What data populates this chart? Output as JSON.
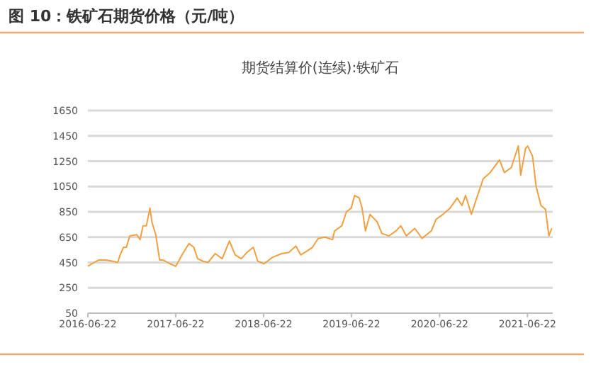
{
  "chart_data": {
    "type": "line",
    "title": "图 10：铁矿石期货价格（元/吨）",
    "subtitle": "期货结算价(连续):铁矿石",
    "x": [
      "2016-06-22",
      "2016-07-08",
      "2016-08-06",
      "2016-09-05",
      "2016-10-05",
      "2016-10-24",
      "2016-11-03",
      "2016-11-17",
      "2016-11-29",
      "2016-12-13",
      "2017-01-11",
      "2017-01-25",
      "2017-02-06",
      "2017-02-20",
      "2017-03-07",
      "2017-03-15",
      "2017-03-31",
      "2017-04-16",
      "2017-04-30",
      "2017-05-19",
      "2017-06-22",
      "2017-07-18",
      "2017-08-16",
      "2017-09-05",
      "2017-09-21",
      "2017-10-14",
      "2017-11-03",
      "2017-12-03",
      "2018-01-01",
      "2018-01-31",
      "2018-02-24",
      "2018-03-21",
      "2018-04-14",
      "2018-05-10",
      "2018-05-29",
      "2018-06-24",
      "2018-07-28",
      "2018-09-05",
      "2018-10-05",
      "2018-11-03",
      "2018-11-23",
      "2018-12-19",
      "2019-01-11",
      "2019-02-04",
      "2019-03-05",
      "2019-04-04",
      "2019-04-13",
      "2019-05-13",
      "2019-06-01",
      "2019-06-21",
      "2019-07-05",
      "2019-07-24",
      "2019-08-05",
      "2019-08-19",
      "2019-09-07",
      "2019-10-07",
      "2019-10-26",
      "2019-11-25",
      "2019-12-24",
      "2020-01-13",
      "2020-02-05",
      "2020-03-11",
      "2020-04-10",
      "2020-05-19",
      "2020-06-07",
      "2020-07-06",
      "2020-08-05",
      "2020-09-03",
      "2020-09-23",
      "2020-10-08",
      "2020-11-01",
      "2020-11-20",
      "2020-12-20",
      "2021-01-18",
      "2021-02-26",
      "2021-03-18",
      "2021-04-16",
      "2021-05-15",
      "2021-05-25",
      "2021-06-14",
      "2021-06-23",
      "2021-07-13",
      "2021-07-28",
      "2021-08-17",
      "2021-09-05",
      "2021-09-19",
      "2021-10-01"
    ],
    "series": [
      {
        "color": "#f0a040",
        "values": [
          420,
          440,
          470,
          470,
          460,
          450,
          510,
          570,
          570,
          660,
          670,
          630,
          740,
          740,
          880,
          770,
          670,
          470,
          470,
          450,
          420,
          510,
          600,
          570,
          480,
          460,
          450,
          520,
          480,
          620,
          510,
          480,
          530,
          570,
          460,
          440,
          490,
          520,
          530,
          580,
          510,
          540,
          570,
          640,
          650,
          630,
          700,
          740,
          850,
          880,
          980,
          960,
          880,
          700,
          830,
          770,
          680,
          660,
          700,
          740,
          660,
          720,
          640,
          700,
          790,
          830,
          880,
          960,
          900,
          980,
          830,
          940,
          1110,
          1160,
          1260,
          1160,
          1200,
          1370,
          1140,
          1350,
          1370,
          1290,
          1050,
          900,
          870,
          660,
          720
        ]
      }
    ],
    "xlim": [
      "2016-06-22",
      "2021-10-05"
    ],
    "xticks": [
      "2016-06-22",
      "2017-06-22",
      "2018-06-22",
      "2019-06-22",
      "2020-06-22",
      "2021-06-22"
    ],
    "ylim": [
      50,
      1650
    ],
    "yticks": [
      50,
      250,
      450,
      650,
      850,
      1050,
      1250,
      1450,
      1650
    ],
    "grid": "y",
    "line_style": "solid"
  }
}
